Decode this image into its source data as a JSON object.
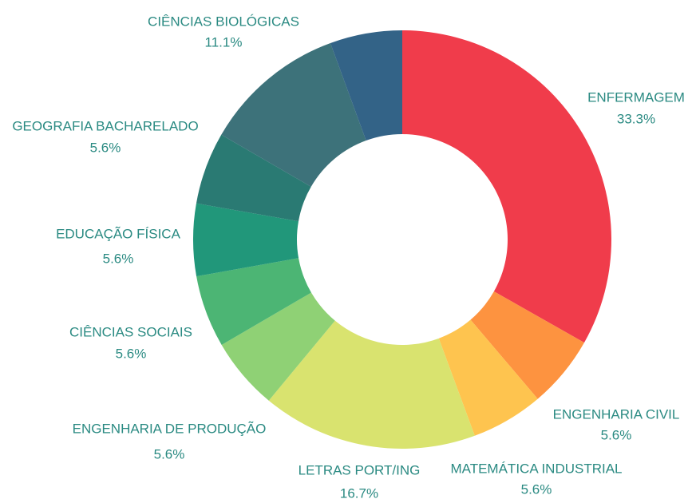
{
  "chart_data": {
    "type": "donut",
    "categories": [
      "ENFERMAGEM",
      "ENGENHARIA CIVIL",
      "MATEMÁTICA INDUSTRIAL",
      "LETRAS PORT/ING",
      "ENGENHARIA DE PRODUÇÃO",
      "CIÊNCIAS SOCIAIS",
      "EDUCAÇÃO FÍSICA",
      "GEOGRAFIA BACHARELADO",
      "CIÊNCIAS BIOLÓGICAS",
      null
    ],
    "values": [
      33.3,
      5.6,
      5.6,
      16.7,
      5.6,
      5.6,
      5.6,
      5.6,
      11.1,
      5.6
    ],
    "value_labels": [
      "33.3%",
      "5.6%",
      "5.6%",
      "16.7%",
      "5.6%",
      "5.6%",
      "5.6%",
      "5.6%",
      "11.1%",
      null
    ],
    "colors": [
      "#f03c4b",
      "#fd9340",
      "#fec44f",
      "#d9e36f",
      "#8fd175",
      "#4cb574",
      "#21977a",
      "#2a7a73",
      "#3d727a",
      "#336387"
    ]
  }
}
